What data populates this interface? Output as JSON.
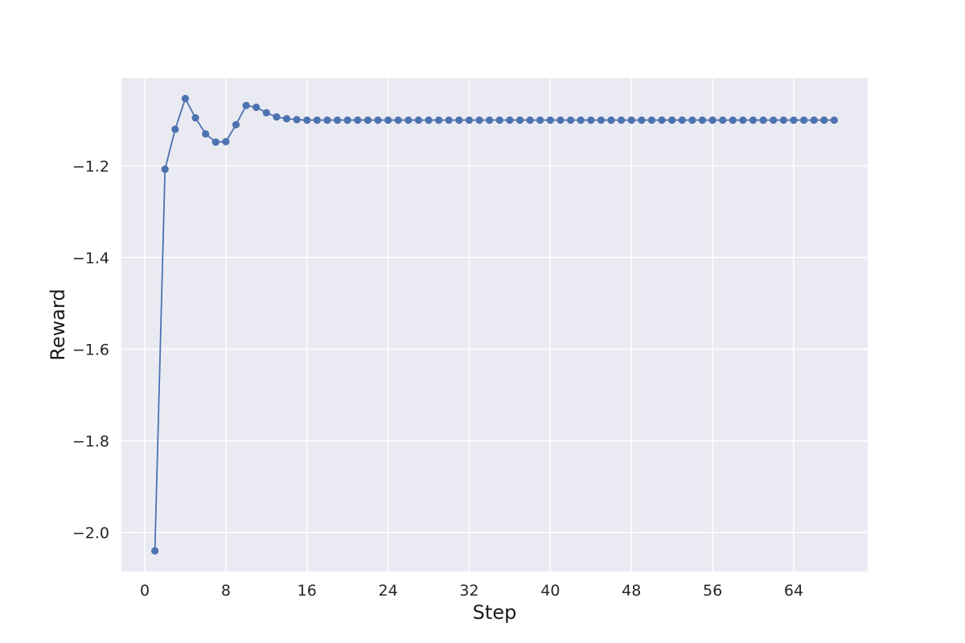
{
  "chart_data": {
    "type": "line",
    "title": "",
    "xlabel": "Step",
    "ylabel": "Reward",
    "xlim": [
      -2.3,
      71.3
    ],
    "ylim": [
      -2.085,
      -1.008
    ],
    "xticks": [
      0,
      8,
      16,
      24,
      32,
      40,
      48,
      56,
      64
    ],
    "xtick_labels": [
      "0",
      "8",
      "16",
      "24",
      "32",
      "40",
      "48",
      "56",
      "64"
    ],
    "yticks": [
      -2.0,
      -1.8,
      -1.6,
      -1.4,
      -1.2
    ],
    "ytick_labels": [
      "−2.0",
      "−1.8",
      "−1.6",
      "−1.4",
      "−1.2"
    ],
    "grid": true,
    "background": "#eaeaf2",
    "series": [
      {
        "color": "#4c72b0",
        "x": [
          1,
          2,
          3,
          4,
          5,
          6,
          7,
          8,
          9,
          10,
          11,
          12,
          13,
          14,
          15,
          16,
          17,
          18,
          19,
          20,
          21,
          22,
          23,
          24,
          25,
          26,
          27,
          28,
          29,
          30,
          31,
          32,
          33,
          34,
          35,
          36,
          37,
          38,
          39,
          40,
          41,
          42,
          43,
          44,
          45,
          46,
          47,
          48,
          49,
          50,
          51,
          52,
          53,
          54,
          55,
          56,
          57,
          58,
          59,
          60,
          61,
          62,
          63,
          64,
          65,
          66,
          67,
          68
        ],
        "y": [
          -2.04,
          -1.207,
          -1.12,
          -1.053,
          -1.095,
          -1.13,
          -1.148,
          -1.147,
          -1.11,
          -1.068,
          -1.072,
          -1.084,
          -1.093,
          -1.097,
          -1.099,
          -1.1,
          -1.1,
          -1.1,
          -1.1,
          -1.1,
          -1.1,
          -1.1,
          -1.1,
          -1.1,
          -1.1,
          -1.1,
          -1.1,
          -1.1,
          -1.1,
          -1.1,
          -1.1,
          -1.1,
          -1.1,
          -1.1,
          -1.1,
          -1.1,
          -1.1,
          -1.1,
          -1.1,
          -1.1,
          -1.1,
          -1.1,
          -1.1,
          -1.1,
          -1.1,
          -1.1,
          -1.1,
          -1.1,
          -1.1,
          -1.1,
          -1.1,
          -1.1,
          -1.1,
          -1.1,
          -1.1,
          -1.1,
          -1.1,
          -1.1,
          -1.1,
          -1.1,
          -1.1,
          -1.1,
          -1.1,
          -1.1,
          -1.1,
          -1.1,
          -1.1,
          -1.1
        ]
      }
    ]
  }
}
